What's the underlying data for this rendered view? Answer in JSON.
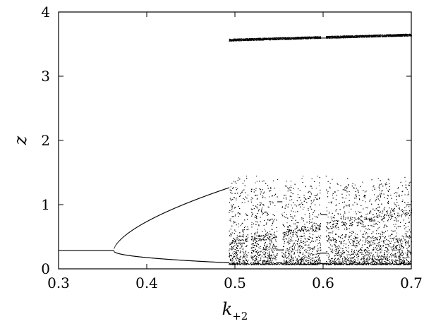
{
  "chart_data": {
    "type": "scatter",
    "title": "",
    "xlabel": {
      "main": "k",
      "sub": "+2"
    },
    "ylabel": "z",
    "xlim": [
      0.3,
      0.7
    ],
    "ylim": [
      0,
      4
    ],
    "x_ticks": [
      0.3,
      0.4,
      0.5,
      0.6,
      0.7
    ],
    "x_tick_labels": [
      "0.3",
      "0.4",
      "0.5",
      "0.6",
      "0.7"
    ],
    "y_ticks": [
      0,
      1,
      2,
      3,
      4
    ],
    "y_tick_labels": [
      "0",
      "1",
      "2",
      "3",
      "4"
    ],
    "grid": false,
    "marker_color": "#000000",
    "description_of_structure": {
      "fixed_point": {
        "x_range": [
          0.3,
          0.362
        ],
        "z": 0.29
      },
      "period_two_branches": {
        "x_range": [
          0.362,
          0.493
        ],
        "upper_z_end": 1.27,
        "lower_z_end": 0.1
      },
      "chaotic_band_high": {
        "x_range": [
          0.493,
          0.7
        ],
        "z_range": [
          3.55,
          3.66
        ]
      },
      "chaotic_band_low": {
        "x_range": [
          0.493,
          0.7
        ],
        "z_range": [
          0.06,
          1.45
        ]
      }
    }
  }
}
